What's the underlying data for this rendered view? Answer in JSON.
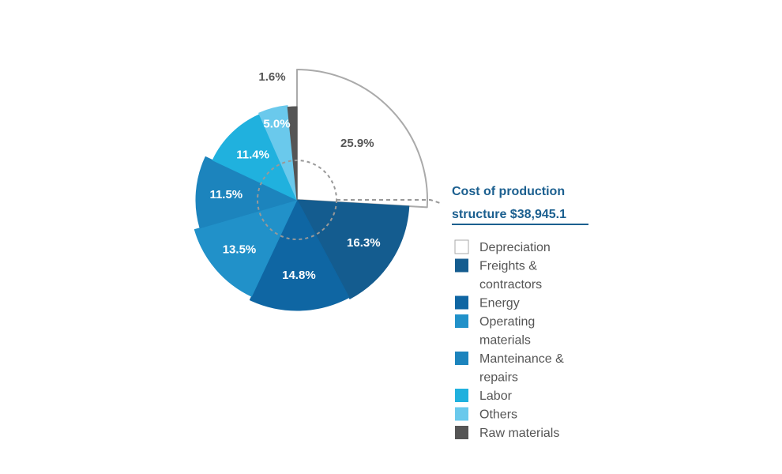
{
  "chart_data": {
    "type": "pie",
    "title_lines": [
      "Cost of production",
      "structure $38,945.1"
    ],
    "unit": "%",
    "slices": [
      {
        "label": "Depreciation",
        "legend_lines": [
          "Depreciation"
        ],
        "value": 25.9,
        "display": "25.9%",
        "color": "#ffffff",
        "outline": "#aaaaaa",
        "label_color": "#555555"
      },
      {
        "label": "Freights & contractors",
        "legend_lines": [
          "Freights &",
          "contractors"
        ],
        "value": 16.3,
        "display": "16.3%",
        "color": "#145c8f",
        "label_color": "#ffffff"
      },
      {
        "label": "Energy",
        "legend_lines": [
          "Energy"
        ],
        "value": 14.8,
        "display": "14.8%",
        "color": "#0f66a3",
        "label_color": "#ffffff"
      },
      {
        "label": "Operating materials",
        "legend_lines": [
          "Operating",
          "materials"
        ],
        "value": 13.5,
        "display": "13.5%",
        "color": "#2191c9",
        "label_color": "#ffffff"
      },
      {
        "label": "Manteinance & repairs",
        "legend_lines": [
          "Manteinance &",
          "repairs"
        ],
        "value": 11.5,
        "display": "11.5%",
        "color": "#1c84bd",
        "label_color": "#ffffff"
      },
      {
        "label": "Labor",
        "legend_lines": [
          "Labor"
        ],
        "value": 11.4,
        "display": "11.4%",
        "color": "#20b1de",
        "label_color": "#ffffff"
      },
      {
        "label": "Others",
        "legend_lines": [
          "Others"
        ],
        "value": 5.0,
        "display": "5.0%",
        "color": "#6ac9ec",
        "label_color": "#ffffff"
      },
      {
        "label": "Raw materials",
        "legend_lines": [
          "Raw materials"
        ],
        "value": 1.6,
        "display": "1.6%",
        "color": "#555555",
        "label_color": "#555555"
      }
    ]
  }
}
